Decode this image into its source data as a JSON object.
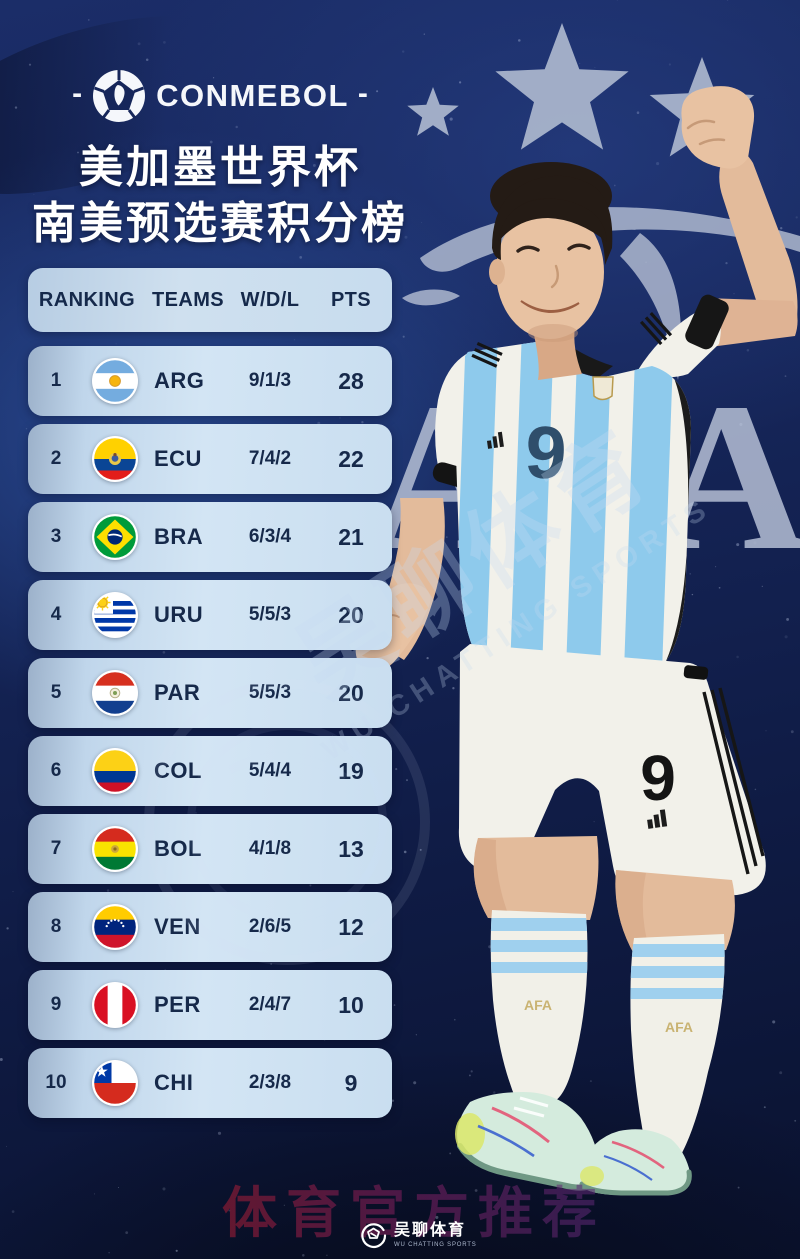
{
  "brand": {
    "dash_left": "-",
    "name": "CONMEBOL",
    "dash_right": "-"
  },
  "title": {
    "line1": "美加墨世界杯",
    "line2": "南美预选赛积分榜"
  },
  "table": {
    "headers": [
      "RANKING",
      "TEAMS",
      "W/D/L",
      "PTS"
    ],
    "rows": [
      {
        "rank": "1",
        "team": "ARG",
        "wdl": "9/1/3",
        "pts": "28",
        "flag": {
          "kind": "h",
          "bands": [
            [
              "#74acdf",
              0.33
            ],
            [
              "#ffffff",
              0.34
            ],
            [
              "#74acdf",
              0.33
            ]
          ],
          "emblem": "sun"
        }
      },
      {
        "rank": "2",
        "team": "ECU",
        "wdl": "7/4/2",
        "pts": "22",
        "flag": {
          "kind": "h",
          "bands": [
            [
              "#ffd100",
              0.5
            ],
            [
              "#0a4595",
              0.25
            ],
            [
              "#e31d1a",
              0.25
            ]
          ],
          "emblem": "crest"
        }
      },
      {
        "rank": "3",
        "team": "BRA",
        "wdl": "6/3/4",
        "pts": "21",
        "flag": {
          "kind": "bra"
        }
      },
      {
        "rank": "4",
        "team": "URU",
        "wdl": "5/5/3",
        "pts": "20",
        "flag": {
          "kind": "uru"
        }
      },
      {
        "rank": "5",
        "team": "PAR",
        "wdl": "5/5/3",
        "pts": "20",
        "flag": {
          "kind": "h",
          "bands": [
            [
              "#d6301f",
              0.34
            ],
            [
              "#ffffff",
              0.33
            ],
            [
              "#123f8f",
              0.33
            ]
          ],
          "emblem": "dot"
        }
      },
      {
        "rank": "6",
        "team": "COL",
        "wdl": "5/4/4",
        "pts": "19",
        "flag": {
          "kind": "h",
          "bands": [
            [
              "#fcd116",
              0.5
            ],
            [
              "#003893",
              0.25
            ],
            [
              "#ce1126",
              0.25
            ]
          ]
        }
      },
      {
        "rank": "7",
        "team": "BOL",
        "wdl": "4/1/8",
        "pts": "13",
        "flag": {
          "kind": "h",
          "bands": [
            [
              "#d52b1e",
              0.34
            ],
            [
              "#f9e300",
              0.33
            ],
            [
              "#007934",
              0.33
            ]
          ],
          "emblem": "dot2"
        }
      },
      {
        "rank": "8",
        "team": "VEN",
        "wdl": "2/6/5",
        "pts": "12",
        "flag": {
          "kind": "h",
          "bands": [
            [
              "#ffcc00",
              0.34
            ],
            [
              "#00247d",
              0.33
            ],
            [
              "#cf142b",
              0.33
            ]
          ],
          "emblem": "stars"
        }
      },
      {
        "rank": "9",
        "team": "PER",
        "wdl": "2/4/7",
        "pts": "10",
        "flag": {
          "kind": "v",
          "bands": [
            [
              "#d91023",
              0.34
            ],
            [
              "#ffffff",
              0.32
            ],
            [
              "#d91023",
              0.34
            ]
          ]
        }
      },
      {
        "rank": "10",
        "team": "CHI",
        "wdl": "2/3/8",
        "pts": "9",
        "flag": {
          "kind": "chi"
        }
      }
    ]
  },
  "player": {
    "jersey_number": "9",
    "shorts_number": "9"
  },
  "watermarks": {
    "afa_text": "AFA",
    "diagonal_cn": "吴聊体育",
    "diagonal_en": "WU CHATTING SPORTS",
    "bottom_red": "体育官方推荐"
  },
  "footer": {
    "brand_cn": "吴聊体育",
    "brand_en": "WU CHATTING SPORTS"
  },
  "colors": {
    "background": "#16265a",
    "row_light": "#d3e5f4",
    "row_edge": "#9cb1ca",
    "table_text": "#16294a",
    "star": "#a9b4cb",
    "watermark_red": "#8c1a3a",
    "jersey_blue": "#8ecaec"
  }
}
